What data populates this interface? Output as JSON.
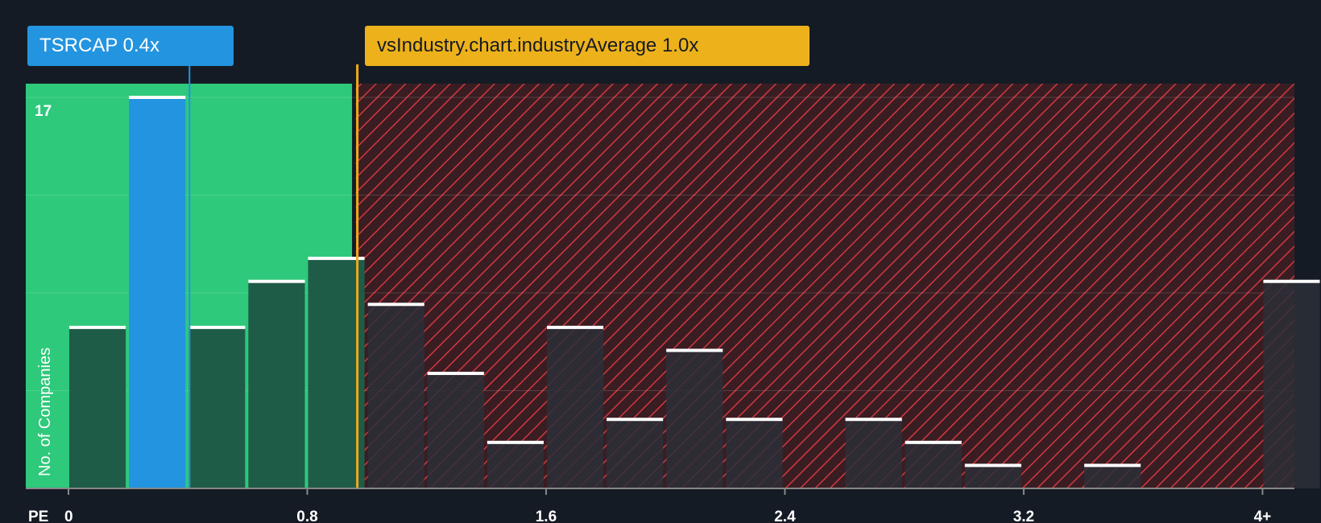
{
  "company_label": {
    "ticker": "TSRCAP",
    "value": "0.4x"
  },
  "industry_label": {
    "text": "vsIndustry.chart.industryAverage",
    "value": "1.0x"
  },
  "chart_data": {
    "type": "bar",
    "xlabel": "PE",
    "ylabel": "No. of Companies",
    "x_tick_labels": [
      "0",
      "0.8",
      "1.6",
      "2.4",
      "3.2",
      "4+"
    ],
    "x_tick_values": [
      0,
      0.8,
      1.6,
      2.4,
      3.2,
      4.0
    ],
    "y_max_label": "17",
    "ylim": [
      0,
      17.6
    ],
    "bin_width": 0.2,
    "bins": [
      {
        "x": 0.0,
        "value": 7
      },
      {
        "x": 0.2,
        "value": 17,
        "highlight": true
      },
      {
        "x": 0.4,
        "value": 7
      },
      {
        "x": 0.6,
        "value": 9
      },
      {
        "x": 0.8,
        "value": 10
      },
      {
        "x": 1.0,
        "value": 8
      },
      {
        "x": 1.2,
        "value": 5
      },
      {
        "x": 1.4,
        "value": 2
      },
      {
        "x": 1.6,
        "value": 7
      },
      {
        "x": 1.8,
        "value": 3
      },
      {
        "x": 2.0,
        "value": 6
      },
      {
        "x": 2.2,
        "value": 3
      },
      {
        "x": 2.4,
        "value": 0
      },
      {
        "x": 2.6,
        "value": 3
      },
      {
        "x": 2.8,
        "value": 2
      },
      {
        "x": 3.0,
        "value": 1
      },
      {
        "x": 3.2,
        "value": 0
      },
      {
        "x": 3.4,
        "value": 1
      },
      {
        "x": 3.6,
        "value": 0
      },
      {
        "x": 3.8,
        "value": 0
      },
      {
        "x": 4.0,
        "value": 9
      }
    ],
    "company_value": 0.4,
    "industry_average": 1.0,
    "fair_zone_end": 0.95,
    "colors": {
      "background": "#151b24",
      "fair_zone": "#2ec97a",
      "bar_fair": "#1f5c48",
      "bar_over": "#2b2f38",
      "highlight": "#2394e0",
      "over_zone": "#3a1d23",
      "hatch": "#d0393f",
      "industry_line": "#f0a91c",
      "bar_cap": "#ffffff",
      "grid": "#ffffff"
    }
  }
}
